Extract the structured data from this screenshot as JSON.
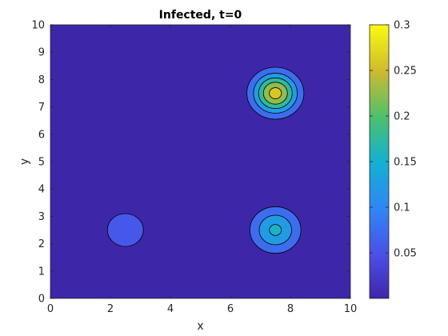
{
  "chart_data": {
    "type": "contour",
    "title": "Infected, t=0",
    "xlabel": "x",
    "ylabel": "y",
    "xlim": [
      0,
      10
    ],
    "ylim": [
      0,
      10
    ],
    "xticks": [
      "0",
      "2",
      "4",
      "6",
      "8",
      "10"
    ],
    "yticks": [
      "0",
      "1",
      "2",
      "3",
      "4",
      "5",
      "6",
      "7",
      "8",
      "9",
      "10"
    ],
    "grid": false,
    "colormap": "parula",
    "colorbar": {
      "range": [
        0,
        0.3
      ],
      "ticks": [
        0.05,
        0.1,
        0.15,
        0.2,
        0.25,
        0.3
      ],
      "tick_labels": [
        "0.05",
        "0.1",
        "0.15",
        "0.2",
        "0.25",
        "0.3"
      ]
    },
    "contour_levels": [
      0.05,
      0.1,
      0.15,
      0.2,
      0.25
    ],
    "background_value": 0,
    "hotspots": [
      {
        "x": 7.5,
        "y": 7.5,
        "peak": 0.27,
        "radius": 0.95
      },
      {
        "x": 7.5,
        "y": 2.5,
        "peak": 0.16,
        "radius": 0.85
      },
      {
        "x": 2.5,
        "y": 2.5,
        "peak": 0.06,
        "radius": 0.6
      }
    ]
  }
}
